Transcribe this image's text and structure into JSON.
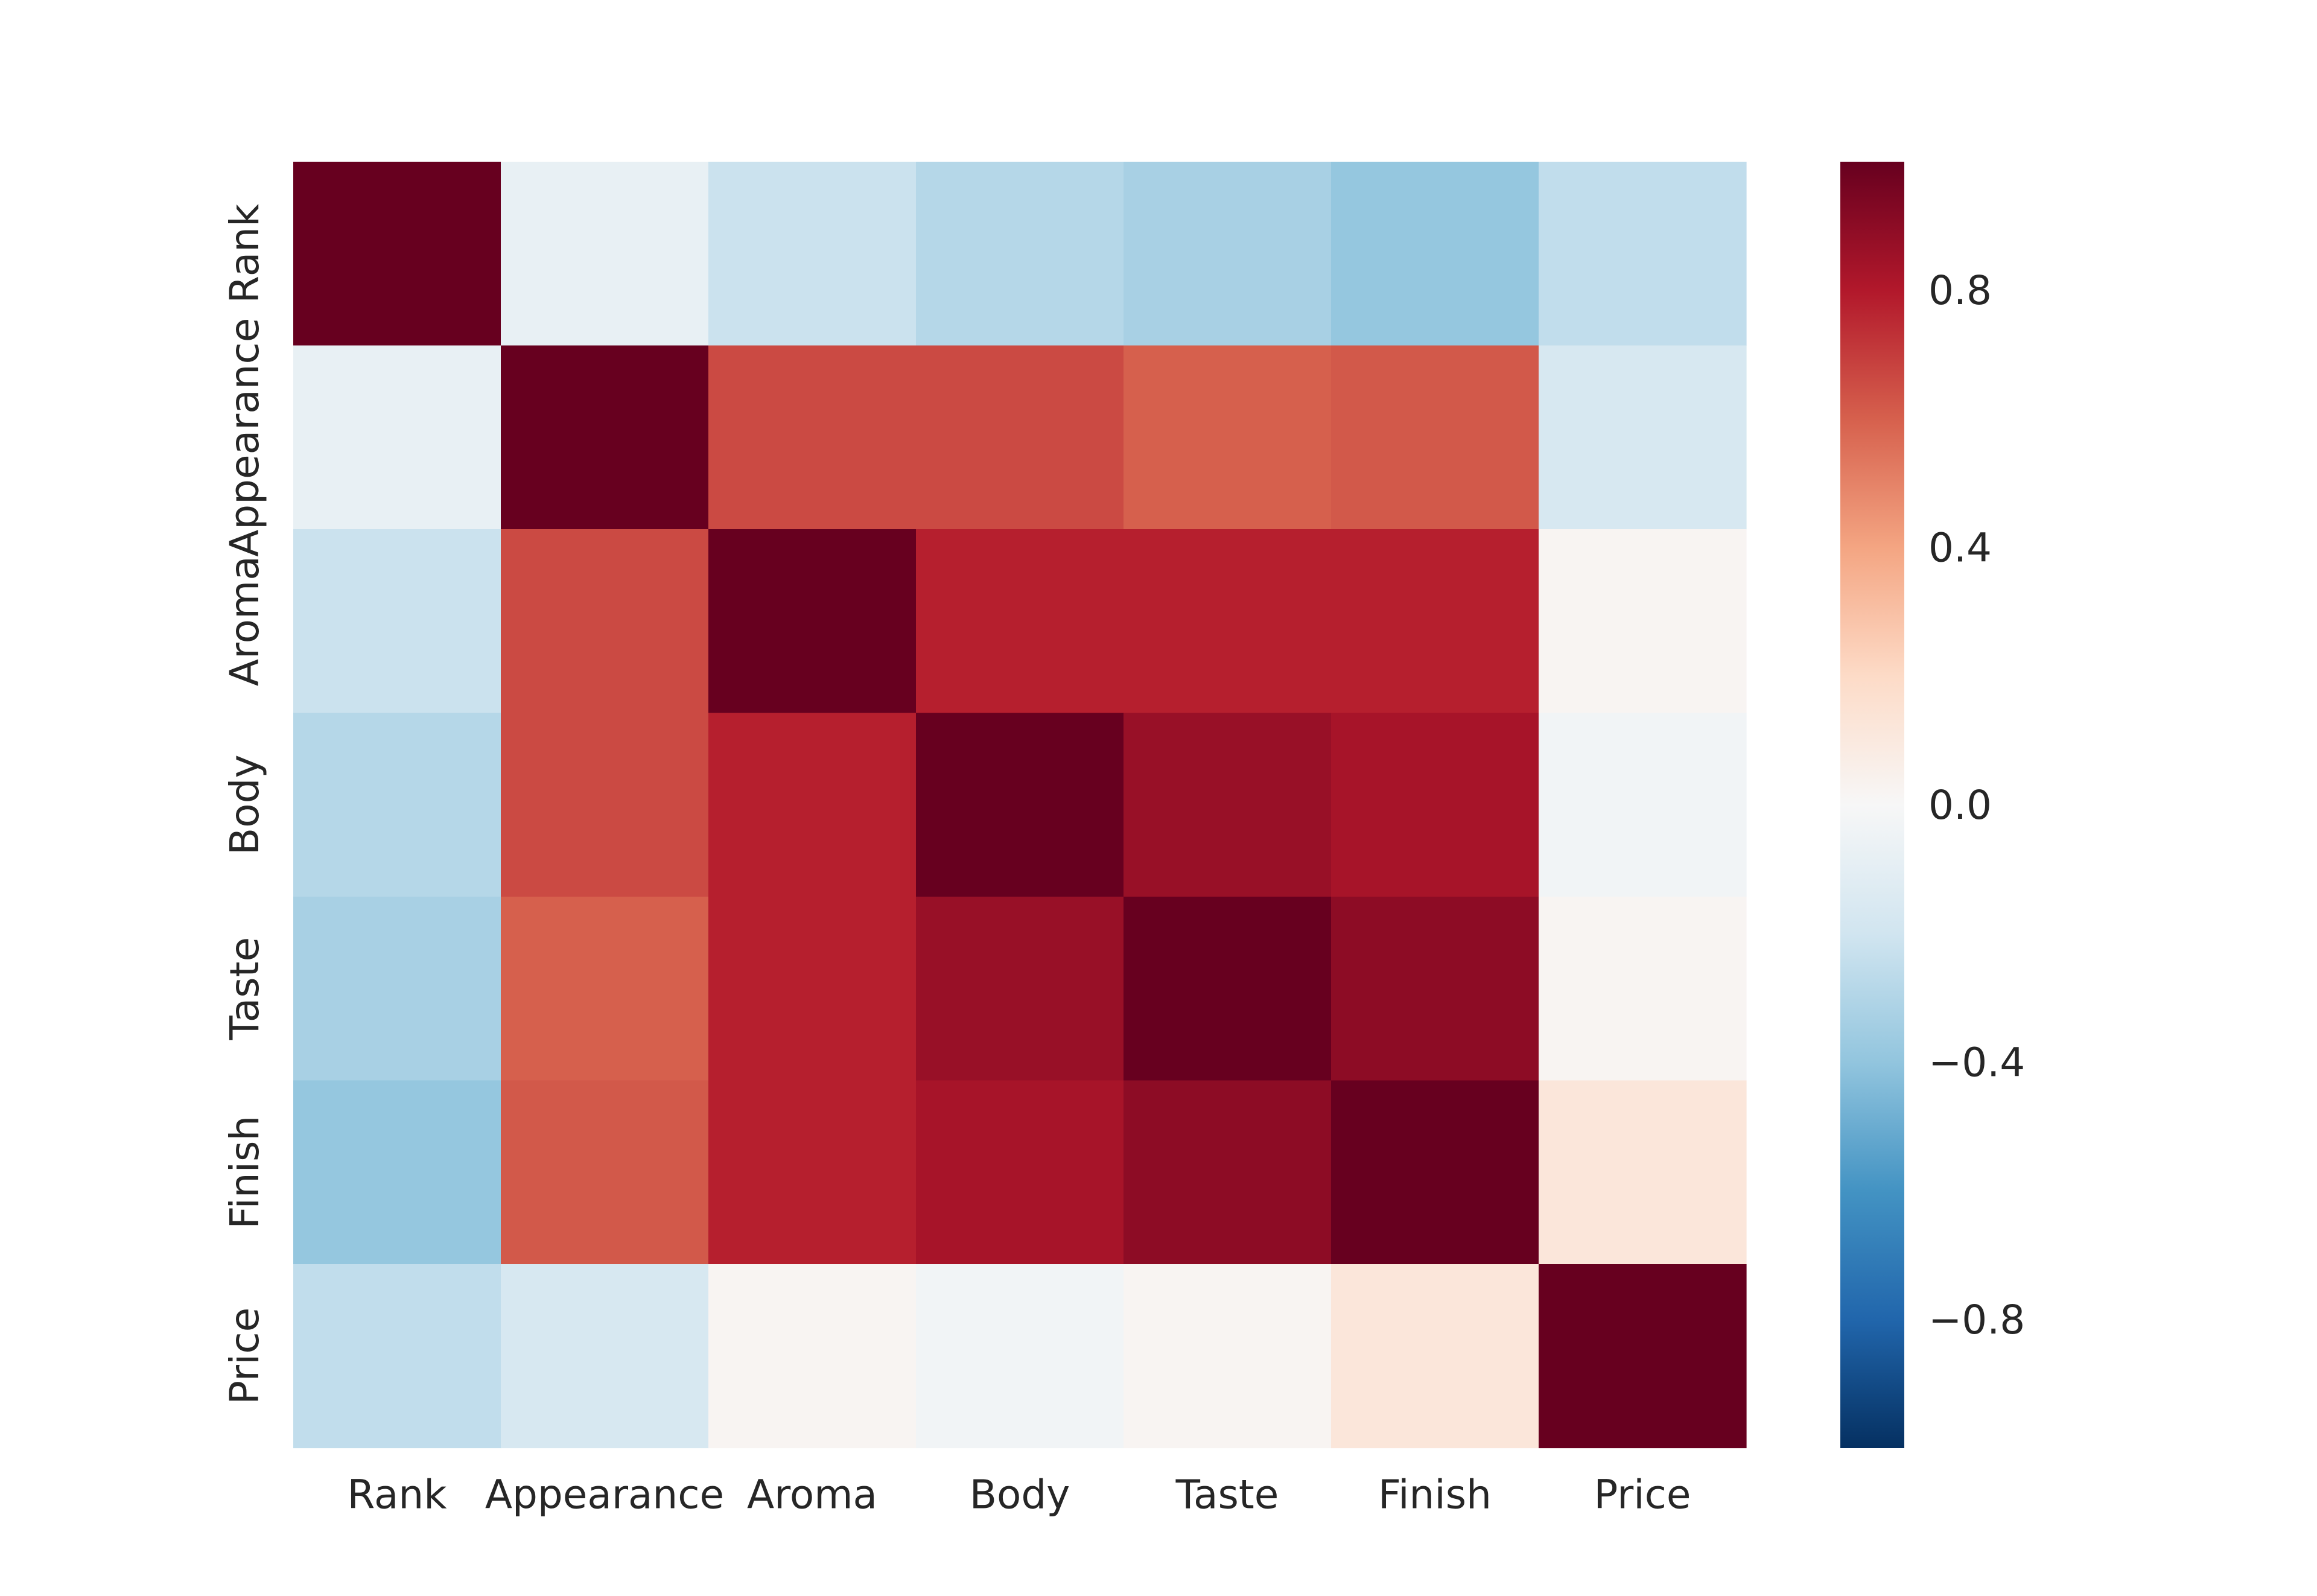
{
  "chart_data": {
    "type": "heatmap",
    "x_labels": [
      "Rank",
      "Appearance",
      "Aroma",
      "Body",
      "Taste",
      "Finish",
      "Price"
    ],
    "y_labels": [
      "Rank",
      "Appearance",
      "Aroma",
      "Body",
      "Taste",
      "Finish",
      "Price"
    ],
    "values": [
      [
        1.0,
        -0.08,
        -0.22,
        -0.29,
        -0.33,
        -0.39,
        -0.25
      ],
      [
        -0.08,
        1.0,
        0.66,
        0.66,
        0.6,
        0.62,
        -0.17
      ],
      [
        -0.22,
        0.66,
        1.0,
        0.78,
        0.78,
        0.78,
        0.02
      ],
      [
        -0.29,
        0.66,
        0.78,
        1.0,
        0.87,
        0.83,
        -0.03
      ],
      [
        -0.33,
        0.6,
        0.78,
        0.87,
        1.0,
        0.9,
        0.02
      ],
      [
        -0.39,
        0.62,
        0.78,
        0.83,
        0.9,
        1.0,
        0.12
      ],
      [
        -0.25,
        -0.17,
        0.02,
        -0.03,
        0.02,
        0.12,
        1.0
      ]
    ],
    "colorbar": {
      "colormap": "RdBu_r",
      "vmin": -1.0,
      "vmax": 1.0,
      "ticks": [
        -0.8,
        -0.4,
        0.0,
        0.4,
        0.8
      ],
      "tick_labels": [
        "−0.8",
        "−0.4",
        "0.0",
        "0.4",
        "0.8"
      ]
    },
    "title": "",
    "xlabel": "",
    "ylabel": ""
  }
}
